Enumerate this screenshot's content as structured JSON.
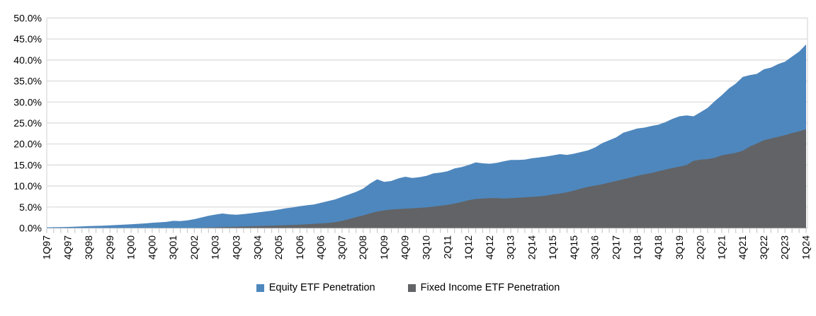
{
  "chart_data": {
    "type": "area",
    "title": "",
    "xlabel": "",
    "ylabel": "",
    "grid": true,
    "legend_position": "bottom",
    "y_axis": {
      "min": 0,
      "max": 50,
      "step": 5,
      "tick_labels": [
        "0.0%",
        "5.0%",
        "10.0%",
        "15.0%",
        "20.0%",
        "25.0%",
        "30.0%",
        "35.0%",
        "40.0%",
        "45.0%",
        "50.0%"
      ]
    },
    "x_axis": {
      "label_every_n": 3,
      "tick_labels": [
        "1Q97",
        "4Q97",
        "3Q98",
        "2Q99",
        "1Q00",
        "4Q00",
        "3Q01",
        "2Q02",
        "1Q03",
        "4Q03",
        "3Q04",
        "2Q05",
        "1Q06",
        "4Q06",
        "3Q07",
        "2Q08",
        "1Q09",
        "4Q09",
        "3Q10",
        "2Q11",
        "1Q12",
        "4Q12",
        "3Q13",
        "2Q14",
        "1Q15",
        "4Q15",
        "3Q16",
        "2Q17",
        "1Q18",
        "4Q18",
        "3Q19",
        "2Q20",
        "1Q21",
        "4Q21",
        "3Q22",
        "2Q23",
        "1Q24"
      ]
    },
    "categories": [
      "1Q97",
      "2Q97",
      "3Q97",
      "4Q97",
      "1Q98",
      "2Q98",
      "3Q98",
      "4Q98",
      "1Q99",
      "2Q99",
      "3Q99",
      "4Q99",
      "1Q00",
      "2Q00",
      "3Q00",
      "4Q00",
      "1Q01",
      "2Q01",
      "3Q01",
      "4Q01",
      "1Q02",
      "2Q02",
      "3Q02",
      "4Q02",
      "1Q03",
      "2Q03",
      "3Q03",
      "4Q03",
      "1Q04",
      "2Q04",
      "3Q04",
      "4Q04",
      "1Q05",
      "2Q05",
      "3Q05",
      "4Q05",
      "1Q06",
      "2Q06",
      "3Q06",
      "4Q06",
      "1Q07",
      "2Q07",
      "3Q07",
      "4Q07",
      "1Q08",
      "2Q08",
      "3Q08",
      "4Q08",
      "1Q09",
      "2Q09",
      "3Q09",
      "4Q09",
      "1Q10",
      "2Q10",
      "3Q10",
      "4Q10",
      "1Q11",
      "2Q11",
      "3Q11",
      "4Q11",
      "1Q12",
      "2Q12",
      "3Q12",
      "4Q12",
      "1Q13",
      "2Q13",
      "3Q13",
      "4Q13",
      "1Q14",
      "2Q14",
      "3Q14",
      "4Q14",
      "1Q15",
      "2Q15",
      "3Q15",
      "4Q15",
      "1Q16",
      "2Q16",
      "3Q16",
      "4Q16",
      "1Q17",
      "2Q17",
      "3Q17",
      "4Q17",
      "1Q18",
      "2Q18",
      "3Q18",
      "4Q18",
      "1Q19",
      "2Q19",
      "3Q19",
      "4Q19",
      "1Q20",
      "2Q20",
      "3Q20",
      "4Q20",
      "1Q21",
      "2Q21",
      "3Q21",
      "4Q21",
      "1Q22",
      "2Q22",
      "3Q22",
      "4Q22",
      "1Q23",
      "2Q23",
      "3Q23",
      "4Q23",
      "1Q24"
    ],
    "series": [
      {
        "name": "Equity ETF Penetration",
        "color": "#4E87BD",
        "values": [
          0.15,
          0.18,
          0.22,
          0.26,
          0.32,
          0.38,
          0.45,
          0.5,
          0.55,
          0.62,
          0.7,
          0.8,
          0.9,
          1.0,
          1.1,
          1.25,
          1.35,
          1.45,
          1.7,
          1.65,
          1.8,
          2.1,
          2.5,
          2.9,
          3.2,
          3.45,
          3.25,
          3.15,
          3.3,
          3.5,
          3.7,
          3.9,
          4.1,
          4.4,
          4.7,
          4.9,
          5.2,
          5.4,
          5.6,
          6.0,
          6.4,
          6.8,
          7.4,
          8.0,
          8.6,
          9.4,
          10.6,
          11.6,
          11.0,
          11.2,
          11.8,
          12.2,
          11.9,
          12.1,
          12.4,
          13.0,
          13.2,
          13.5,
          14.2,
          14.5,
          15.0,
          15.6,
          15.4,
          15.3,
          15.5,
          15.9,
          16.2,
          16.2,
          16.3,
          16.6,
          16.8,
          17.0,
          17.3,
          17.6,
          17.4,
          17.7,
          18.1,
          18.5,
          19.2,
          20.2,
          20.9,
          21.6,
          22.7,
          23.2,
          23.7,
          23.9,
          24.3,
          24.6,
          25.2,
          26.0,
          26.6,
          26.8,
          26.6,
          27.6,
          28.6,
          30.2,
          31.6,
          33.2,
          34.4,
          36.0,
          36.4,
          36.7,
          37.8,
          38.2,
          39.0,
          39.6,
          40.8,
          42.0,
          43.7
        ]
      },
      {
        "name": "Fixed Income ETF Penetration",
        "color": "#626366",
        "values": [
          0,
          0,
          0,
          0,
          0,
          0,
          0,
          0,
          0,
          0,
          0,
          0,
          0,
          0,
          0,
          0,
          0,
          0,
          0,
          0,
          0,
          0,
          0.05,
          0.1,
          0.15,
          0.2,
          0.25,
          0.3,
          0.35,
          0.4,
          0.45,
          0.5,
          0.55,
          0.6,
          0.65,
          0.7,
          0.8,
          0.9,
          1.0,
          1.1,
          1.2,
          1.4,
          1.7,
          2.1,
          2.6,
          3.0,
          3.5,
          3.9,
          4.2,
          4.4,
          4.5,
          4.6,
          4.7,
          4.8,
          4.9,
          5.1,
          5.3,
          5.5,
          5.8,
          6.2,
          6.6,
          6.9,
          7.0,
          7.1,
          7.1,
          7.0,
          7.1,
          7.2,
          7.3,
          7.4,
          7.5,
          7.7,
          8.0,
          8.2,
          8.5,
          8.9,
          9.4,
          9.8,
          10.1,
          10.4,
          10.8,
          11.2,
          11.6,
          12.0,
          12.4,
          12.8,
          13.1,
          13.5,
          13.9,
          14.3,
          14.6,
          15.0,
          16.0,
          16.3,
          16.4,
          16.7,
          17.3,
          17.6,
          17.9,
          18.4,
          19.4,
          20.1,
          20.9,
          21.3,
          21.7,
          22.1,
          22.6,
          23.0,
          23.5
        ]
      }
    ],
    "colors": {
      "gridline": "#D9D9D9",
      "axis_line": "#BFBFBF",
      "tick": "#BFBFBF",
      "text": "#000000"
    }
  }
}
